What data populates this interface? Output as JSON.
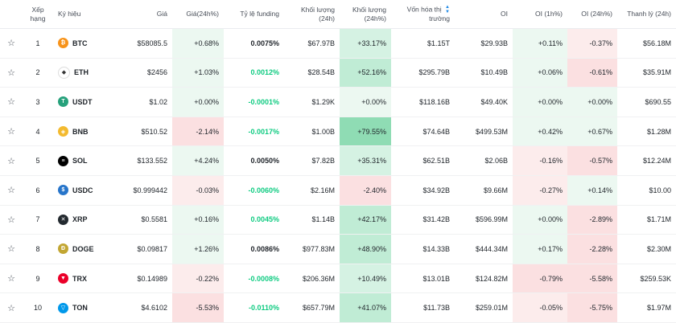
{
  "headers": {
    "rank": "Xếp hạng",
    "symbol": "Ký hiệu",
    "price": "Giá",
    "price_change": "Giá(24h%)",
    "funding": "Tỷ lệ funding",
    "volume": "Khối lượng (24h)",
    "volume_change": "Khối lượng (24h%)",
    "mcap_line1": "Vốn hóa thị",
    "mcap_line2": "trường",
    "oi": "OI",
    "oi_1h": "OI (1h%)",
    "oi_24h": "OI (24h%)",
    "liquidation": "Thanh lý (24h)"
  },
  "rows": [
    {
      "rank": "1",
      "symbol": "BTC",
      "price": "$58085.5",
      "price_change": "+0.68%",
      "funding": "0.0075%",
      "volume": "$67.97B",
      "volume_change": "+33.17%",
      "mcap": "$1.15T",
      "oi": "$29.93B",
      "oi_1h": "+0.11%",
      "oi_24h": "-0.37%",
      "liquidation": "$56.18M",
      "icon_color": "#f7931a",
      "icon": "btc-icon",
      "glyph": "₿"
    },
    {
      "rank": "2",
      "symbol": "ETH",
      "price": "$2456",
      "price_change": "+1.03%",
      "funding": "0.0012%",
      "volume": "$28.54B",
      "volume_change": "+52.16%",
      "mcap": "$295.79B",
      "oi": "$10.49B",
      "oi_1h": "+0.06%",
      "oi_24h": "-0.61%",
      "liquidation": "$35.91M",
      "icon_color": "#ffffff",
      "icon": "eth-icon",
      "glyph": "◆"
    },
    {
      "rank": "3",
      "symbol": "USDT",
      "price": "$1.02",
      "price_change": "+0.00%",
      "funding": "-0.0001%",
      "volume": "$1.29K",
      "volume_change": "+0.00%",
      "mcap": "$118.16B",
      "oi": "$49.40K",
      "oi_1h": "+0.00%",
      "oi_24h": "+0.00%",
      "liquidation": "$690.55",
      "icon_color": "#26a17b",
      "icon": "usdt-icon",
      "glyph": "T"
    },
    {
      "rank": "4",
      "symbol": "BNB",
      "price": "$510.52",
      "price_change": "-2.14%",
      "funding": "-0.0017%",
      "volume": "$1.00B",
      "volume_change": "+79.55%",
      "mcap": "$74.64B",
      "oi": "$499.53M",
      "oi_1h": "+0.42%",
      "oi_24h": "+0.67%",
      "liquidation": "$1.28M",
      "icon_color": "#f3ba2f",
      "icon": "bnb-icon",
      "glyph": "◈"
    },
    {
      "rank": "5",
      "symbol": "SOL",
      "price": "$133.552",
      "price_change": "+4.24%",
      "funding": "0.0050%",
      "volume": "$7.82B",
      "volume_change": "+35.31%",
      "mcap": "$62.51B",
      "oi": "$2.06B",
      "oi_1h": "-0.16%",
      "oi_24h": "-0.57%",
      "liquidation": "$12.24M",
      "icon_color": "#000000",
      "icon": "sol-icon",
      "glyph": "≡"
    },
    {
      "rank": "6",
      "symbol": "USDC",
      "price": "$0.999442",
      "price_change": "-0.03%",
      "funding": "-0.0060%",
      "volume": "$2.16M",
      "volume_change": "-2.40%",
      "mcap": "$34.92B",
      "oi": "$9.66M",
      "oi_1h": "-0.27%",
      "oi_24h": "+0.14%",
      "liquidation": "$10.00",
      "icon_color": "#2775ca",
      "icon": "usdc-icon",
      "glyph": "$"
    },
    {
      "rank": "7",
      "symbol": "XRP",
      "price": "$0.5581",
      "price_change": "+0.16%",
      "funding": "0.0045%",
      "volume": "$1.14B",
      "volume_change": "+42.17%",
      "mcap": "$31.42B",
      "oi": "$596.99M",
      "oi_1h": "+0.00%",
      "oi_24h": "-2.89%",
      "liquidation": "$1.71M",
      "icon_color": "#23292f",
      "icon": "xrp-icon",
      "glyph": "✕"
    },
    {
      "rank": "8",
      "symbol": "DOGE",
      "price": "$0.09817",
      "price_change": "+1.26%",
      "funding": "0.0086%",
      "volume": "$977.83M",
      "volume_change": "+48.90%",
      "mcap": "$14.33B",
      "oi": "$444.34M",
      "oi_1h": "+0.17%",
      "oi_24h": "-2.28%",
      "liquidation": "$2.30M",
      "icon_color": "#c2a633",
      "icon": "doge-icon",
      "glyph": "Ð"
    },
    {
      "rank": "9",
      "symbol": "TRX",
      "price": "$0.14989",
      "price_change": "-0.22%",
      "funding": "-0.0008%",
      "volume": "$206.36M",
      "volume_change": "+10.49%",
      "mcap": "$13.01B",
      "oi": "$124.82M",
      "oi_1h": "-0.79%",
      "oi_24h": "-5.58%",
      "liquidation": "$259.53K",
      "icon_color": "#eb0029",
      "icon": "trx-icon",
      "glyph": "▼"
    },
    {
      "rank": "10",
      "symbol": "TON",
      "price": "$4.6102",
      "price_change": "-5.53%",
      "funding": "-0.0110%",
      "volume": "$657.79M",
      "volume_change": "+41.07%",
      "mcap": "$11.73B",
      "oi": "$259.01M",
      "oi_1h": "-0.05%",
      "oi_24h": "-5.75%",
      "liquidation": "$1.97M",
      "icon_color": "#0098ea",
      "icon": "ton-icon",
      "glyph": "▽"
    }
  ],
  "colors": {
    "positive": "#0ecb81",
    "negative": "#f6465d",
    "accent": "#1e88e5"
  }
}
